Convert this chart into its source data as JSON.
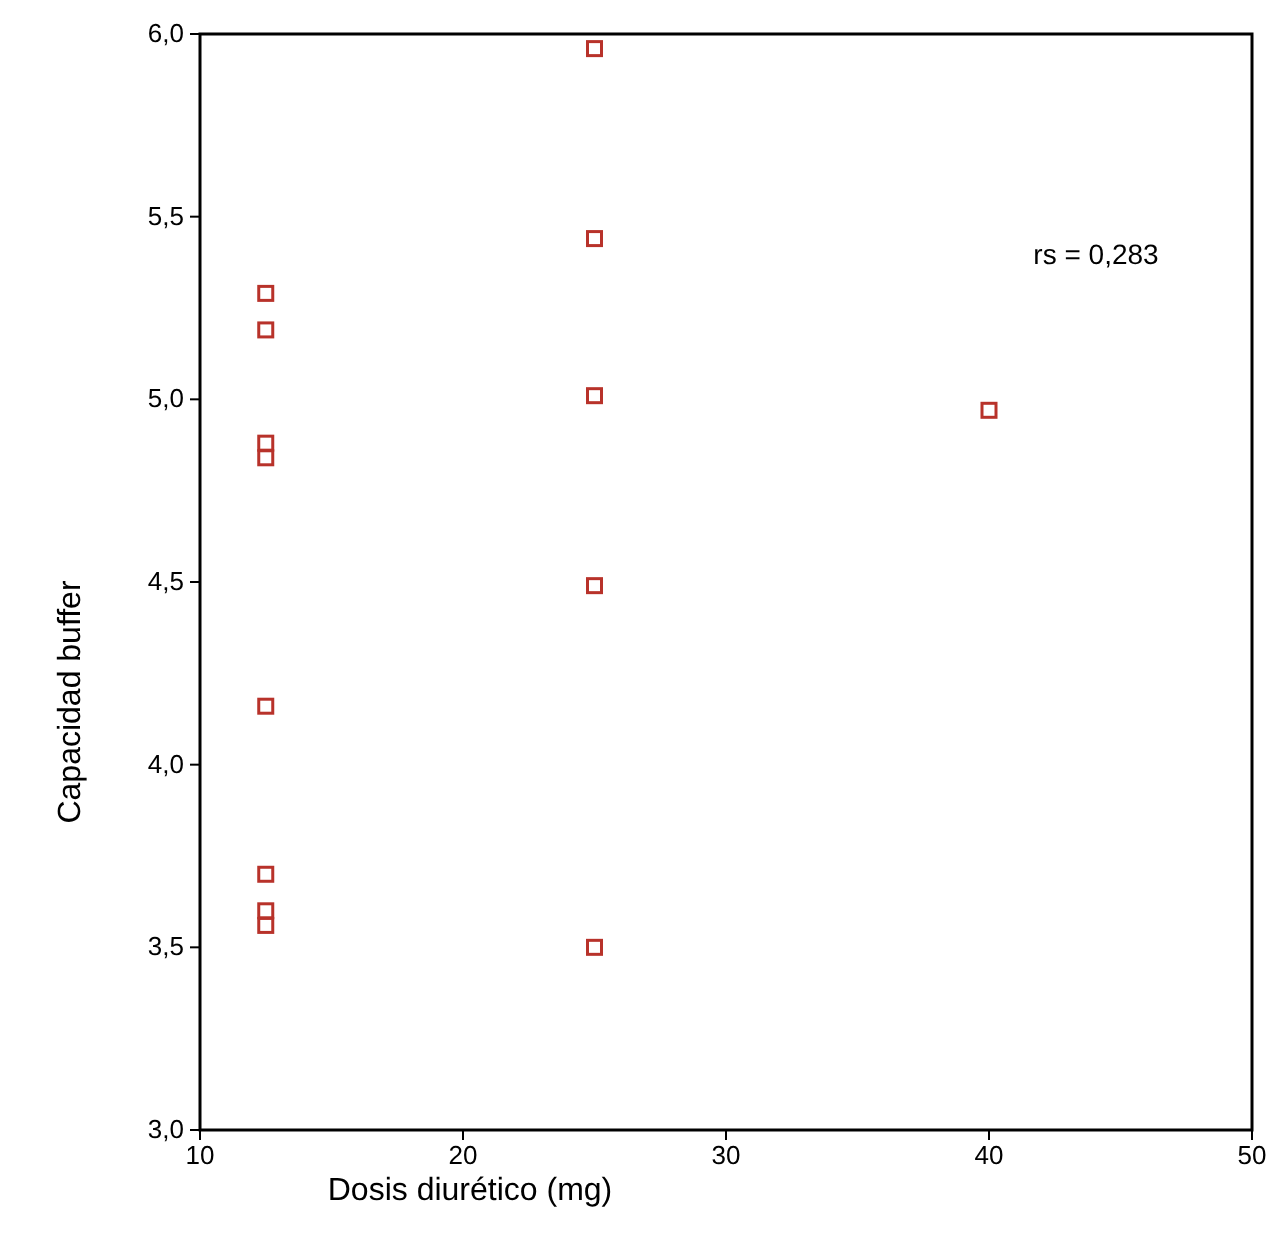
{
  "chart_data": {
    "type": "scatter",
    "xlabel": "Dosis diurético (mg)",
    "ylabel": "Capacidad buffer",
    "marker": "square",
    "grid": false,
    "x": [
      12.5,
      12.5,
      12.5,
      12.5,
      12.5,
      12.5,
      12.5,
      12.5,
      25,
      25,
      25,
      25,
      25,
      40
    ],
    "series": [
      {
        "color": "#b8322a",
        "values": [
          5.29,
          5.19,
          4.88,
          4.84,
          4.16,
          3.7,
          3.6,
          3.56,
          5.96,
          5.44,
          5.01,
          4.49,
          3.5,
          4.97
        ]
      }
    ],
    "xlim": [
      10,
      50
    ],
    "xticks": [
      10,
      20,
      30,
      40,
      50
    ],
    "ylim": [
      3,
      6
    ],
    "yticks": [
      {
        "value": 3,
        "label": "3,0"
      },
      {
        "value": 3.5,
        "label": "3,5"
      },
      {
        "value": 4,
        "label": "4,0"
      },
      {
        "value": 4.5,
        "label": "4,5"
      },
      {
        "value": 5,
        "label": "5,0"
      },
      {
        "value": 5.5,
        "label": "5,5"
      },
      {
        "value": 6,
        "label": "6,0"
      }
    ],
    "annotations": [
      "rs = 0,283"
    ]
  }
}
